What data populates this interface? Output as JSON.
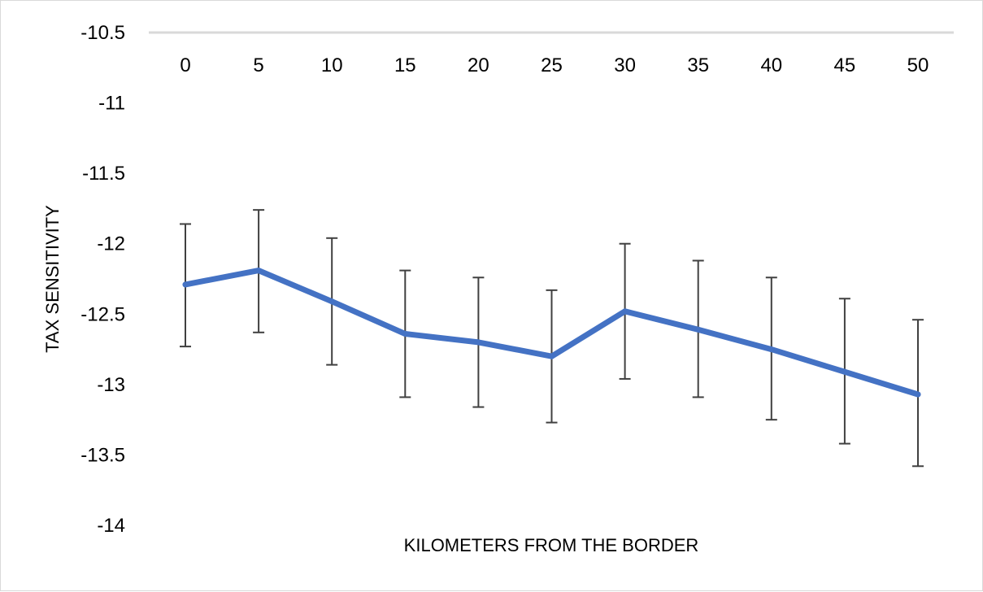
{
  "chart_data": {
    "type": "line",
    "title": "",
    "xlabel": "KILOMETERS FROM THE BORDER",
    "ylabel": "TAX SENSITIVITY",
    "x": [
      0,
      5,
      10,
      15,
      20,
      25,
      30,
      35,
      40,
      45,
      50
    ],
    "x_tick_labels": [
      "0",
      "5",
      "10",
      "15",
      "20",
      "25",
      "30",
      "35",
      "40",
      "45",
      "50"
    ],
    "y_tick_labels": [
      "-10.5",
      "-11",
      "-11.5",
      "-12",
      "-12.5",
      "-13",
      "-13.5",
      "-14"
    ],
    "ylim": [
      -14,
      -10.5
    ],
    "x_axis_position": "top",
    "grid": false,
    "legend": "none",
    "series": [
      {
        "values": [
          -12.29,
          -12.19,
          -12.41,
          -12.64,
          -12.7,
          -12.8,
          -12.48,
          -12.61,
          -12.75,
          -12.91,
          -13.07
        ],
        "error_low": [
          -12.73,
          -12.63,
          -12.86,
          -13.09,
          -13.16,
          -13.27,
          -12.96,
          -13.09,
          -13.25,
          -13.42,
          -13.58
        ],
        "error_high": [
          -11.86,
          -11.76,
          -11.96,
          -12.19,
          -12.24,
          -12.33,
          -12.0,
          -12.12,
          -12.24,
          -12.39,
          -12.54
        ],
        "color": "#4472c4"
      }
    ],
    "colors": {
      "line": "#4472c4",
      "error_bar": "#404040",
      "axis_line": "#d9d9d9"
    }
  }
}
